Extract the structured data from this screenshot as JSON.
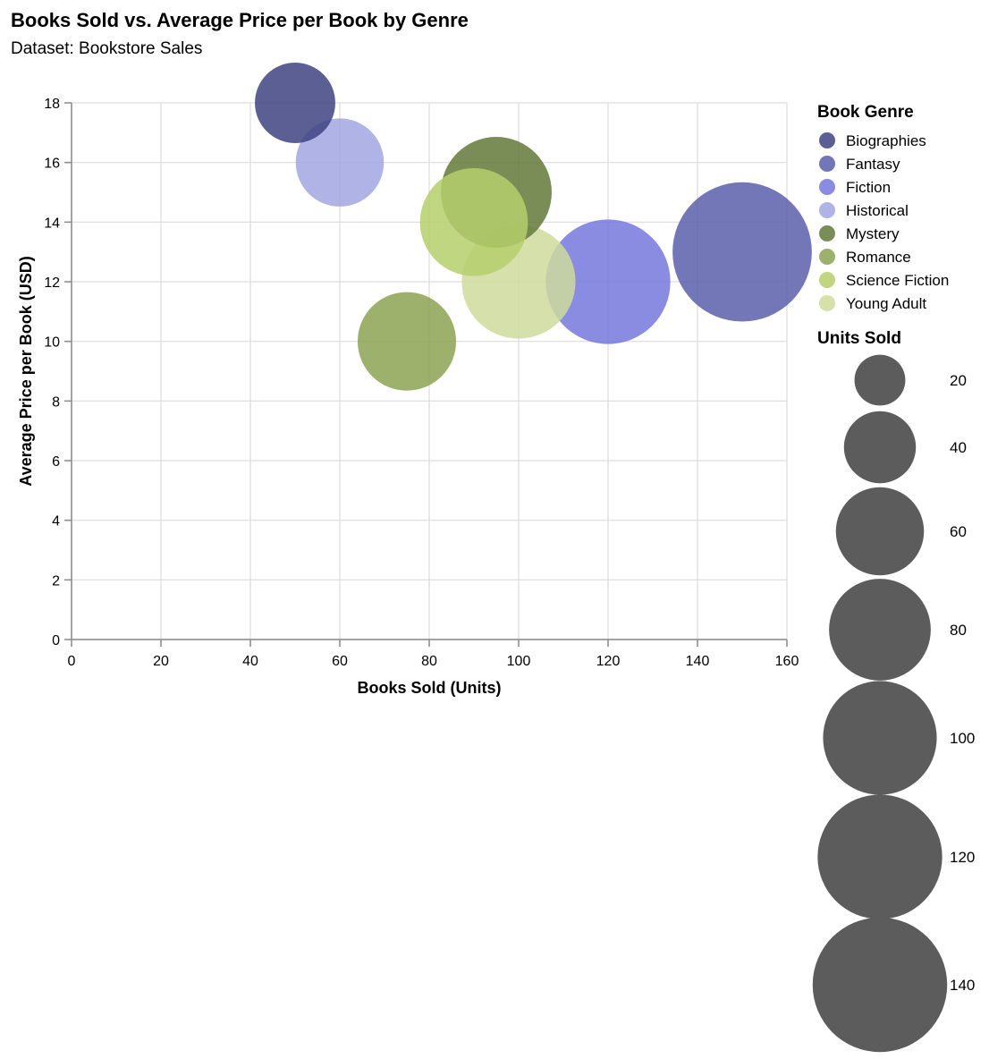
{
  "chart_data": {
    "type": "scatter",
    "title": "Books Sold vs. Average Price per Book by Genre",
    "subtitle": "Dataset: Bookstore Sales",
    "xlabel": "Books Sold (Units)",
    "ylabel": "Average Price per Book (USD)",
    "xlim": [
      0,
      160
    ],
    "ylim": [
      0,
      18
    ],
    "xticks": [
      0,
      20,
      40,
      60,
      80,
      100,
      120,
      140,
      160
    ],
    "yticks": [
      0,
      2,
      4,
      6,
      8,
      10,
      12,
      14,
      16,
      18
    ],
    "grid": true,
    "legend_position": "right",
    "color_legend_title": "Book Genre",
    "size_legend_title": "Units Sold",
    "size_legend_values": [
      20,
      40,
      60,
      80,
      100,
      120,
      140
    ],
    "size_legend_color": "#5c5c5c",
    "genres": [
      "Biographies",
      "Fantasy",
      "Fiction",
      "Historical",
      "Mystery",
      "Romance",
      "Science Fiction",
      "Young Adult"
    ],
    "colors": {
      "Biographies": "#3e4380",
      "Fantasy": "#5a5fab",
      "Fiction": "#7478da",
      "Historical": "#a2a6e2",
      "Mystery": "#637939",
      "Romance": "#8ca252",
      "Science Fiction": "#b5cf6b",
      "Young Adult": "#cedb9c"
    },
    "points": [
      {
        "genre": "Fantasy",
        "x": 150,
        "y": 13,
        "size": 150
      },
      {
        "genre": "Fiction",
        "x": 120,
        "y": 12,
        "size": 120
      },
      {
        "genre": "Mystery",
        "x": 95,
        "y": 15,
        "size": 95
      },
      {
        "genre": "Science Fiction",
        "x": 90,
        "y": 14,
        "size": 90
      },
      {
        "genre": "Young Adult",
        "x": 100,
        "y": 12,
        "size": 100
      },
      {
        "genre": "Romance",
        "x": 75,
        "y": 10,
        "size": 75
      },
      {
        "genre": "Historical",
        "x": 60,
        "y": 16,
        "size": 60
      },
      {
        "genre": "Biographies",
        "x": 50,
        "y": 18,
        "size": 50
      }
    ]
  }
}
